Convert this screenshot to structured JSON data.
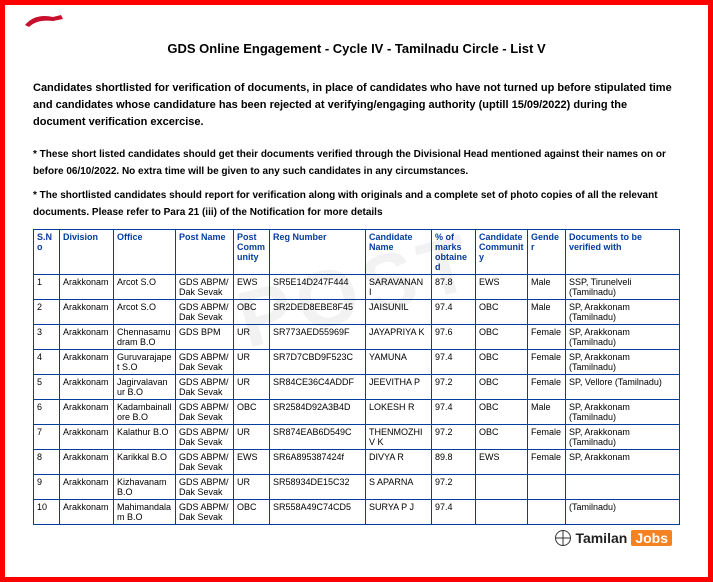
{
  "title": "GDS Online Engagement - Cycle IV - Tamilnadu Circle - List V",
  "intro": "Candidates shortlisted for verification of documents, in place of candidates who have not turned up before stipulated time and candidates whose candidature has been rejected at verifying/engaging authority (uptill 15/09/2022) during the document verification excercise.",
  "note1": "* These short listed candidates should get their documents verified through the Divisional Head mentioned against their names on or before 06/10/2022. No extra time will be given to any such candidates in any circumstances.",
  "note2": "* The shortlisted candidates should report for verification along with originals and a complete set of photo copies of all the relevant documents. Please refer to Para 21 (iii) of the Notification for more details",
  "watermark": "POST",
  "brand": {
    "t1": "Tamilan",
    "t2": "Jobs"
  },
  "columns": [
    "S.No",
    "Division",
    "Office",
    "Post Name",
    "Post Community",
    "Reg Number",
    "Candidate Name",
    "% of marks obtained",
    "Candidate Community",
    "Gender",
    "Documents to be verified with"
  ],
  "rows": [
    {
      "sno": "1",
      "division": "Arakkonam",
      "office": "Arcot S.O",
      "post": "GDS ABPM/ Dak Sevak",
      "comm": "EWS",
      "reg": "SR5E14D247F444",
      "cand": "SARAVANAN I",
      "pct": "87.8",
      "ccom": "EWS",
      "gender": "Male",
      "doc": "SSP, Tirunelveli (Tamilnadu)"
    },
    {
      "sno": "2",
      "division": "Arakkonam",
      "office": "Arcot S.O",
      "post": "GDS ABPM/ Dak Sevak",
      "comm": "OBC",
      "reg": "SR2DED8EBE8F45",
      "cand": "JAISUNIL",
      "pct": "97.4",
      "ccom": "OBC",
      "gender": "Male",
      "doc": "SP, Arakkonam (Tamilnadu)"
    },
    {
      "sno": "3",
      "division": "Arakkonam",
      "office": "Chennasamudram B.O",
      "post": "GDS BPM",
      "comm": "UR",
      "reg": "SR773AED55969F",
      "cand": "JAYAPRIYA K",
      "pct": "97.6",
      "ccom": "OBC",
      "gender": "Female",
      "doc": "SP, Arakkonam (Tamilnadu)"
    },
    {
      "sno": "4",
      "division": "Arakkonam",
      "office": "Guruvarajapet S.O",
      "post": "GDS ABPM/ Dak Sevak",
      "comm": "UR",
      "reg": "SR7D7CBD9F523C",
      "cand": "YAMUNA",
      "pct": "97.4",
      "ccom": "OBC",
      "gender": "Female",
      "doc": "SP, Arakkonam (Tamilnadu)"
    },
    {
      "sno": "5",
      "division": "Arakkonam",
      "office": "Jagirvalavanur B.O",
      "post": "GDS ABPM/ Dak Sevak",
      "comm": "UR",
      "reg": "SR84CE36C4ADDF",
      "cand": "JEEVITHA P",
      "pct": "97.2",
      "ccom": "OBC",
      "gender": "Female",
      "doc": "SP, Vellore (Tamilnadu)"
    },
    {
      "sno": "6",
      "division": "Arakkonam",
      "office": "Kadambainallore B.O",
      "post": "GDS ABPM/ Dak Sevak",
      "comm": "OBC",
      "reg": "SR2584D92A3B4D",
      "cand": "LOKESH R",
      "pct": "97.4",
      "ccom": "OBC",
      "gender": "Male",
      "doc": "SP, Arakkonam (Tamilnadu)"
    },
    {
      "sno": "7",
      "division": "Arakkonam",
      "office": "Kalathur B.O",
      "post": "GDS ABPM/ Dak Sevak",
      "comm": "UR",
      "reg": "SR874EAB6D549C",
      "cand": "THENMOZHI V K",
      "pct": "97.2",
      "ccom": "OBC",
      "gender": "Female",
      "doc": "SP, Arakkonam (Tamilnadu)"
    },
    {
      "sno": "8",
      "division": "Arakkonam",
      "office": "Karikkal B.O",
      "post": "GDS ABPM/ Dak Sevak",
      "comm": "EWS",
      "reg": "SR6A895387424f",
      "cand": "DIVYA R",
      "pct": "89.8",
      "ccom": "EWS",
      "gender": "Female",
      "doc": "SP, Arakkonam"
    },
    {
      "sno": "9",
      "division": "Arakkonam",
      "office": "Kizhavanam B.O",
      "post": "GDS ABPM/ Dak Sevak",
      "comm": "UR",
      "reg": "SR58934DE15C32",
      "cand": "S APARNA",
      "pct": "97.2",
      "ccom": "",
      "gender": "",
      "doc": ""
    },
    {
      "sno": "10",
      "division": "Arakkonam",
      "office": "Mahimandalam B.O",
      "post": "GDS ABPM/ Dak Sevak",
      "comm": "OBC",
      "reg": "SR558A49C74CD5",
      "cand": "SURYA P J",
      "pct": "97.4",
      "ccom": "",
      "gender": "",
      "doc": "(Tamilnadu)"
    }
  ]
}
